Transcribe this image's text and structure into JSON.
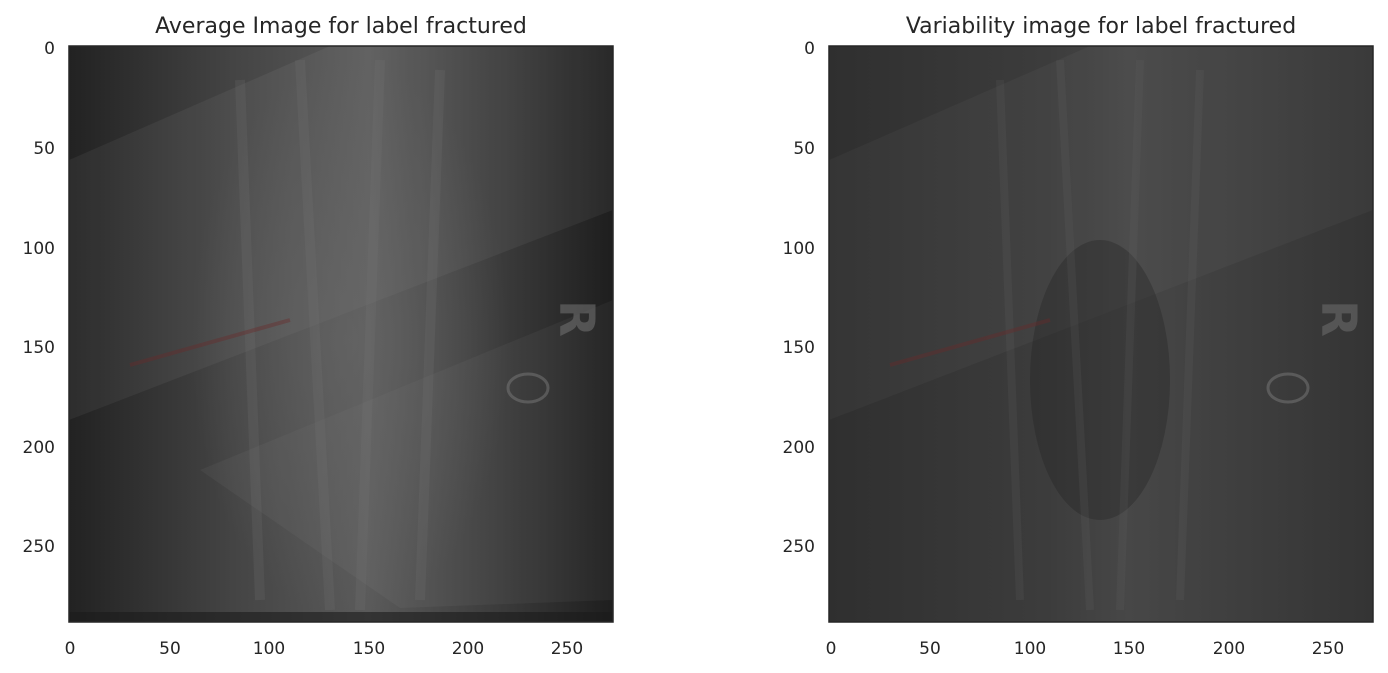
{
  "panels": [
    {
      "title": "Average Image for label fractured",
      "x_ticks": [
        "0",
        "50",
        "100",
        "150",
        "200",
        "250"
      ],
      "y_ticks": [
        "0",
        "50",
        "100",
        "150",
        "200",
        "250"
      ],
      "xlim": [
        0,
        273
      ],
      "ylim": [
        0,
        290
      ],
      "base_color": "#2e2e2e"
    },
    {
      "title": "Variability image for label fractured",
      "x_ticks": [
        "0",
        "50",
        "100",
        "150",
        "200",
        "250"
      ],
      "y_ticks": [
        "0",
        "50",
        "100",
        "150",
        "200",
        "250"
      ],
      "xlim": [
        0,
        273
      ],
      "ylim": [
        0,
        290
      ],
      "base_color": "#343434"
    }
  ]
}
